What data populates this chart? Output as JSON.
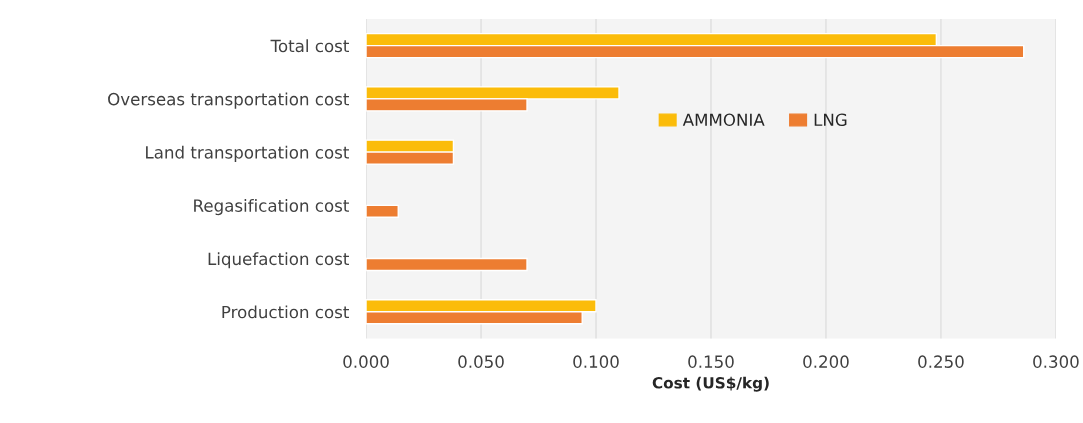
{
  "chart_data": {
    "type": "bar",
    "orientation": "horizontal",
    "xlabel": "Cost (US$/kg)",
    "categories": [
      "Total cost",
      "Overseas transportation cost",
      "Land transportation cost",
      "Regasification cost",
      "Liquefaction cost",
      "Production cost"
    ],
    "series": [
      {
        "name": "AMMONIA",
        "color": "#fbbc0a",
        "values": [
          0.248,
          0.11,
          0.038,
          null,
          null,
          0.1
        ]
      },
      {
        "name": "LNG",
        "color": "#ed7d31",
        "values": [
          0.286,
          0.07,
          0.038,
          0.014,
          0.07,
          0.094
        ]
      }
    ],
    "xlim": [
      0,
      0.3
    ],
    "xticks": [
      {
        "value": 0,
        "label": "0.000"
      },
      {
        "value": 0.05,
        "label": "0.050"
      },
      {
        "value": 0.1,
        "label": "0.100"
      },
      {
        "value": 0.15,
        "label": "0.150"
      },
      {
        "value": 0.2,
        "label": "0.200"
      },
      {
        "value": 0.25,
        "label": "0.250"
      },
      {
        "value": 0.3,
        "label": "0.300"
      }
    ],
    "grid": "x",
    "legend": "center right"
  }
}
